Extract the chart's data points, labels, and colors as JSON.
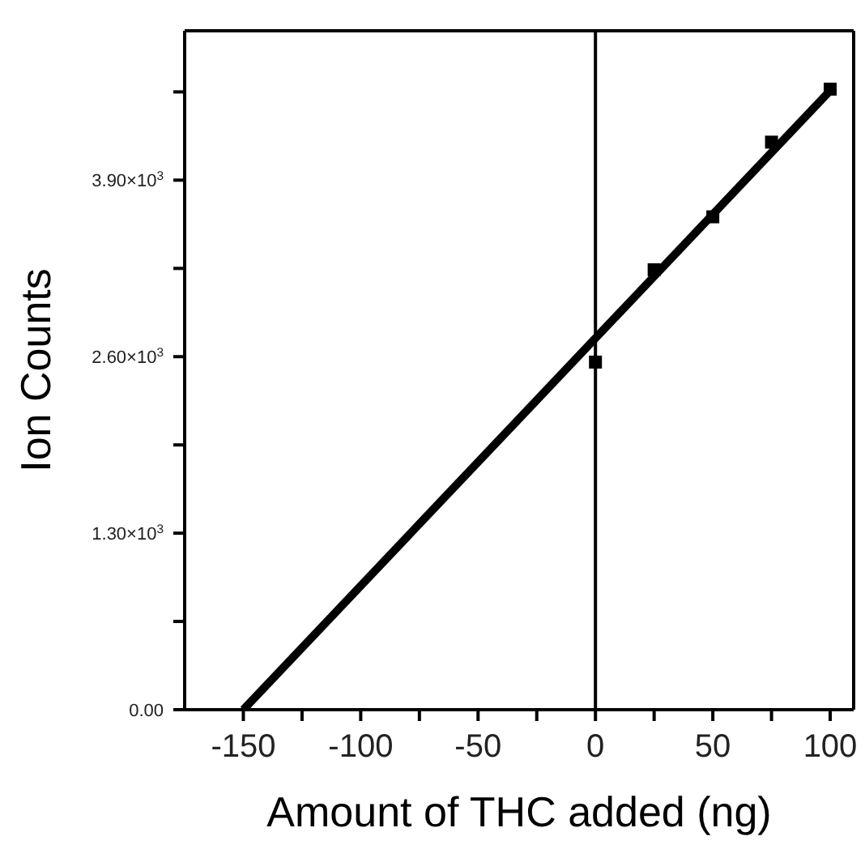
{
  "chart_data": {
    "type": "scatter",
    "xlabel": "Amount of THC added (ng)",
    "ylabel": "Ion Counts",
    "series": [
      {
        "color": "#000000",
        "x": [
          0,
          25,
          50,
          75,
          100
        ],
        "values": [
          2560,
          3240,
          3630,
          4180,
          4570
        ],
        "marker": "square"
      },
      {
        "type": "line",
        "color": "#000000",
        "x": [
          -150,
          100
        ],
        "values": [
          0,
          4560
        ],
        "marker": "none",
        "line_style": "solid"
      }
    ],
    "xlim": [
      -175,
      110
    ],
    "xticks": [
      -150,
      {
        "value": -125,
        "label": null
      },
      -100,
      {
        "value": -75,
        "label": null
      },
      -50,
      {
        "value": -25,
        "label": null
      },
      0,
      {
        "value": 25,
        "label": null
      },
      50,
      {
        "value": 75,
        "label": null
      },
      100
    ],
    "ylim": [
      0,
      5000
    ],
    "yticks": [
      {
        "value": 0,
        "label": "0.00"
      },
      {
        "value": 650,
        "label": null
      },
      {
        "value": 1300,
        "label": "1.30×10$^{3}$"
      },
      {
        "value": 1950,
        "label": null
      },
      {
        "value": 2600,
        "label": "2.60×10$^{3}$"
      },
      {
        "value": 3250,
        "label": null
      },
      {
        "value": 3900,
        "label": "3.90×10$^{3}$"
      },
      {
        "value": 4550,
        "label": null
      }
    ],
    "ref_lines": [
      {
        "axis": "x",
        "value": 0,
        "color": "#000000"
      }
    ],
    "grid": false
  }
}
